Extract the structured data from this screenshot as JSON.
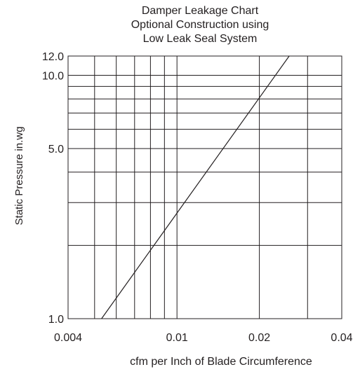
{
  "chart_data": {
    "type": "line",
    "title": [
      "Damper Leakage Chart",
      "Optional Construction using",
      "Low Leak Seal System"
    ],
    "xlabel": "cfm per Inch of Blade Circumference",
    "ylabel": "Static Pressure in.wg",
    "x_scale": "log",
    "y_scale": "log",
    "xlim": [
      0.004,
      0.04
    ],
    "ylim": [
      1.0,
      12.0
    ],
    "x_ticks": [
      0.004,
      0.01,
      0.02,
      0.04
    ],
    "x_tick_labels": [
      "0.004",
      "0.01",
      "0.02",
      "0.04"
    ],
    "y_ticks": [
      1.0,
      5.0,
      10.0,
      12.0
    ],
    "y_tick_labels": [
      "1.0",
      "5.0",
      "10.0",
      "12.0"
    ],
    "x_gridlines": [
      0.005,
      0.006,
      0.007,
      0.008,
      0.009,
      0.01,
      0.02,
      0.03
    ],
    "y_gridlines": [
      2,
      3,
      4,
      5,
      6,
      7,
      8,
      9,
      10
    ],
    "grid": true,
    "series": [
      {
        "x": [
          0.0053,
          0.0257
        ],
        "y": [
          1.0,
          12.0
        ]
      }
    ],
    "colors": {
      "line": "#231f20",
      "grid": "#231f20",
      "text": "#231f20"
    }
  }
}
